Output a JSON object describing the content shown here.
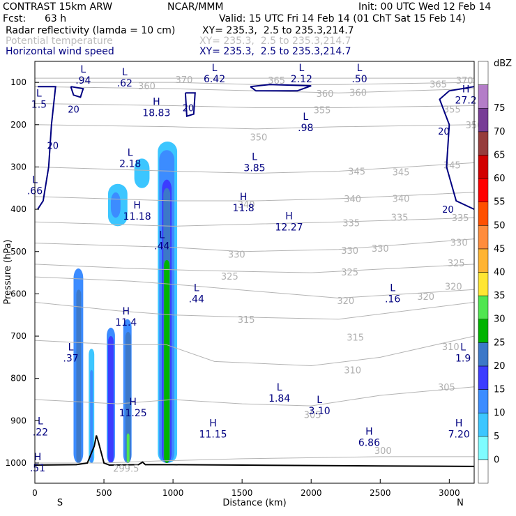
{
  "header": {
    "model": "CONTRAST 15km ARW",
    "org": "NCAR/MMM",
    "init": "Init: 00 UTC Wed 12 Feb 14",
    "fcst_label": "Fcst:",
    "fcst_value": "63 h",
    "valid": "Valid: 15 UTC Fri 14 Feb 14 (01 ChT Sat 15 Feb 14)",
    "fields": [
      {
        "name": "Radar reflectivity (lamda = 10 cm)",
        "xy": "XY= 235.3,  2.5 to 235.3,214.7"
      },
      {
        "name": "Potential temperature",
        "xy": "XY= 235.3,  2.5 to 235.3,214.7"
      },
      {
        "name": "Horizontal wind speed",
        "xy": "XY= 235.3,  2.5 to 235.3,214.7"
      }
    ]
  },
  "chart_data": {
    "type": "heatmap",
    "title": "",
    "xlabel": "Distance (km)",
    "ylabel": "Pressure (hPa)",
    "xlim": [
      0,
      3180
    ],
    "ylim": [
      1050,
      55
    ],
    "x_ticks": [
      0,
      500,
      1000,
      1500,
      2000,
      2500,
      3000
    ],
    "y_ticks": [
      100,
      200,
      300,
      400,
      500,
      600,
      700,
      800,
      900,
      1000
    ],
    "x_end_labels": {
      "left": "S",
      "right": "N"
    },
    "colorbar": {
      "unit": "dBZ",
      "levels": [
        0,
        5,
        10,
        15,
        20,
        25,
        30,
        35,
        40,
        45,
        50,
        55,
        60,
        65,
        70,
        75
      ],
      "colors": [
        "#ffffff",
        "#7ffcff",
        "#3cc6ff",
        "#3c8cff",
        "#3c3cff",
        "#3c78c8",
        "#00b400",
        "#50e650",
        "#ffe632",
        "#ffb432",
        "#ff8c3c",
        "#ff5000",
        "#ff0000",
        "#d20000",
        "#963c3c",
        "#783c96",
        "#b47dc8",
        "#ffffff"
      ]
    },
    "reflectivity_cells": [
      {
        "x0": 280,
        "x1": 350,
        "p_top": 540,
        "p_bot": 1000,
        "dbz": 10
      },
      {
        "x0": 300,
        "x1": 335,
        "p_top": 590,
        "p_bot": 1000,
        "dbz": 20
      },
      {
        "x0": 390,
        "x1": 430,
        "p_top": 730,
        "p_bot": 1000,
        "dbz": 5
      },
      {
        "x0": 400,
        "x1": 420,
        "p_top": 780,
        "p_bot": 1000,
        "dbz": 10
      },
      {
        "x0": 520,
        "x1": 580,
        "p_top": 680,
        "p_bot": 1000,
        "dbz": 10
      },
      {
        "x0": 530,
        "x1": 570,
        "p_top": 700,
        "p_bot": 1000,
        "dbz": 15
      },
      {
        "x0": 640,
        "x1": 700,
        "p_top": 660,
        "p_bot": 1000,
        "dbz": 10
      },
      {
        "x0": 655,
        "x1": 695,
        "p_top": 690,
        "p_bot": 1000,
        "dbz": 20
      },
      {
        "x0": 665,
        "x1": 685,
        "p_top": 930,
        "p_bot": 1000,
        "dbz": 30
      },
      {
        "x0": 890,
        "x1": 1030,
        "p_top": 240,
        "p_bot": 1000,
        "dbz": 5
      },
      {
        "x0": 900,
        "x1": 1010,
        "p_top": 260,
        "p_bot": 1000,
        "dbz": 10
      },
      {
        "x0": 920,
        "x1": 990,
        "p_top": 330,
        "p_bot": 1000,
        "dbz": 15
      },
      {
        "x0": 930,
        "x1": 980,
        "p_top": 350,
        "p_bot": 1000,
        "dbz": 20
      },
      {
        "x0": 935,
        "x1": 975,
        "p_top": 520,
        "p_bot": 1000,
        "dbz": 25
      },
      {
        "x0": 720,
        "x1": 830,
        "p_top": 280,
        "p_bot": 350,
        "dbz": 5
      },
      {
        "x0": 530,
        "x1": 670,
        "p_top": 340,
        "p_bot": 440,
        "dbz": 5
      },
      {
        "x0": 550,
        "x1": 620,
        "p_top": 360,
        "p_bot": 420,
        "dbz": 10
      }
    ],
    "theta_isolines": [
      {
        "value": 300,
        "points": [
          [
            0,
            1000
          ],
          [
            500,
            1000
          ],
          [
            900,
            995
          ],
          [
            1500,
            990
          ],
          [
            2500,
            985
          ],
          [
            3180,
            985
          ]
        ],
        "labels": [
          [
            2520,
            970
          ]
        ]
      },
      {
        "value": 305,
        "points": [
          [
            0,
            850
          ],
          [
            600,
            860
          ],
          [
            1000,
            850
          ],
          [
            1500,
            860
          ],
          [
            2000,
            865
          ],
          [
            2500,
            840
          ],
          [
            3180,
            820
          ]
        ],
        "labels": [
          [
            2010,
            885
          ],
          [
            2980,
            820
          ]
        ]
      },
      {
        "value": 310,
        "points": [
          [
            0,
            710
          ],
          [
            600,
            720
          ],
          [
            950,
            720
          ],
          [
            1300,
            760
          ],
          [
            2000,
            770
          ],
          [
            2500,
            750
          ],
          [
            3180,
            700
          ]
        ],
        "labels": [
          [
            2300,
            780
          ],
          [
            3010,
            725
          ]
        ]
      },
      {
        "value": 315,
        "points": [
          [
            0,
            620
          ],
          [
            600,
            640
          ],
          [
            1000,
            650
          ],
          [
            1500,
            655
          ],
          [
            2200,
            660
          ],
          [
            3180,
            620
          ]
        ],
        "labels": [
          [
            1530,
            660
          ],
          [
            2320,
            702
          ]
        ]
      },
      {
        "value": 320,
        "points": [
          [
            0,
            560
          ],
          [
            700,
            570
          ],
          [
            1100,
            580
          ],
          [
            2200,
            610
          ],
          [
            3180,
            590
          ]
        ],
        "labels": [
          [
            2250,
            616
          ],
          [
            2830,
            606
          ],
          [
            3030,
            582
          ]
        ]
      },
      {
        "value": 325,
        "points": [
          [
            0,
            530
          ],
          [
            700,
            540
          ],
          [
            1200,
            545
          ],
          [
            2000,
            550
          ],
          [
            3180,
            530
          ]
        ],
        "labels": [
          [
            1410,
            558
          ],
          [
            2280,
            548
          ],
          [
            3050,
            527
          ]
        ]
      },
      {
        "value": 330,
        "points": [
          [
            0,
            480
          ],
          [
            1000,
            490
          ],
          [
            1500,
            500
          ],
          [
            2200,
            495
          ],
          [
            3180,
            470
          ]
        ],
        "labels": [
          [
            1460,
            506
          ],
          [
            2280,
            497
          ],
          [
            2500,
            492
          ],
          [
            3070,
            478
          ]
        ]
      },
      {
        "value": 335,
        "points": [
          [
            0,
            430
          ],
          [
            1000,
            440
          ],
          [
            1600,
            435
          ],
          [
            2200,
            430
          ],
          [
            3180,
            420
          ]
        ],
        "labels": [
          [
            2290,
            432
          ],
          [
            2640,
            419
          ],
          [
            3080,
            420
          ]
        ]
      },
      {
        "value": 340,
        "points": [
          [
            0,
            370
          ],
          [
            1000,
            380
          ],
          [
            1600,
            380
          ],
          [
            2200,
            375
          ],
          [
            3180,
            360
          ]
        ],
        "labels": [
          [
            1530,
            388
          ],
          [
            2300,
            375
          ],
          [
            2650,
            374
          ]
        ]
      },
      {
        "value": 345,
        "points": [
          [
            0,
            300
          ],
          [
            1000,
            310
          ],
          [
            1600,
            315
          ],
          [
            2200,
            310
          ],
          [
            3180,
            290
          ]
        ],
        "labels": [
          [
            2330,
            310
          ],
          [
            2650,
            312
          ],
          [
            3020,
            295
          ]
        ]
      },
      {
        "value": 350,
        "points": [
          [
            0,
            200
          ],
          [
            1000,
            205
          ],
          [
            1600,
            210
          ],
          [
            2200,
            205
          ],
          [
            3180,
            200
          ]
        ],
        "labels": [
          [
            1620,
            229
          ],
          [
            3180,
            200
          ]
        ]
      },
      {
        "value": 355,
        "points": [
          [
            0,
            150
          ],
          [
            1000,
            155
          ],
          [
            1600,
            160
          ],
          [
            2200,
            160
          ],
          [
            3180,
            155
          ]
        ],
        "labels": [
          [
            2080,
            165
          ],
          [
            3020,
            163
          ]
        ]
      },
      {
        "value": 360,
        "points": [
          [
            0,
            110
          ],
          [
            1000,
            115
          ],
          [
            1600,
            120
          ],
          [
            2200,
            125
          ],
          [
            3180,
            115
          ]
        ],
        "labels": [
          [
            810,
            108
          ],
          [
            2100,
            126
          ],
          [
            2340,
            124
          ]
        ]
      },
      {
        "value": 365,
        "points": [
          [
            0,
            100
          ],
          [
            1000,
            100
          ],
          [
            1600,
            105
          ],
          [
            2200,
            105
          ],
          [
            3180,
            100
          ]
        ],
        "labels": [
          [
            1750,
            95
          ],
          [
            2920,
            104
          ]
        ]
      },
      {
        "value": 370,
        "points": [
          [
            0,
            90
          ],
          [
            1000,
            90
          ],
          [
            1600,
            90
          ],
          [
            3180,
            90
          ]
        ],
        "labels": [
          [
            1080,
            93
          ],
          [
            3110,
            95
          ]
        ]
      }
    ],
    "wind_speed_contours": [
      {
        "value": 20,
        "points": [
          [
            20,
            110
          ],
          [
            150,
            110
          ],
          [
            120,
            200
          ],
          [
            100,
            300
          ],
          [
            60,
            380
          ],
          [
            20,
            400
          ]
        ],
        "labels": [
          [
            130,
            249
          ],
          [
            280,
            163
          ]
        ]
      },
      {
        "value": 20,
        "points": [
          [
            260,
            110
          ],
          [
            350,
            115
          ],
          [
            330,
            135
          ],
          [
            280,
            130
          ],
          [
            260,
            110
          ]
        ],
        "labels": []
      },
      {
        "value": 20,
        "points": [
          [
            1090,
            125
          ],
          [
            1160,
            125
          ],
          [
            1150,
            175
          ],
          [
            1100,
            180
          ],
          [
            1090,
            125
          ]
        ],
        "labels": [
          [
            1110,
            160
          ]
        ]
      },
      {
        "value": 20,
        "points": [
          [
            1560,
            110
          ],
          [
            1700,
            105
          ],
          [
            2000,
            108
          ],
          [
            1900,
            120
          ],
          [
            1750,
            120
          ],
          [
            1600,
            120
          ],
          [
            1560,
            110
          ]
        ],
        "labels": []
      },
      {
        "value": 20,
        "points": [
          [
            3180,
            110
          ],
          [
            3000,
            120
          ],
          [
            2930,
            140
          ],
          [
            3000,
            200
          ],
          [
            2980,
            300
          ],
          [
            3050,
            380
          ],
          [
            3180,
            400
          ]
        ],
        "labels": [
          [
            2960,
            215
          ],
          [
            2990,
            400
          ]
        ]
      }
    ],
    "extrema": [
      {
        "kind": "L",
        "value": ".94",
        "x": 350,
        "p": 83
      },
      {
        "kind": "L",
        "value": ".62",
        "x": 650,
        "p": 90
      },
      {
        "kind": "L",
        "value": "6.42",
        "x": 1300,
        "p": 80
      },
      {
        "kind": "L",
        "value": "2.12",
        "x": 1930,
        "p": 80
      },
      {
        "kind": "L",
        "value": ".50",
        "x": 2350,
        "p": 80
      },
      {
        "kind": "L",
        "value": "1.5",
        "x": 30,
        "p": 140
      },
      {
        "kind": "H",
        "value": "18.83",
        "x": 880,
        "p": 160
      },
      {
        "kind": "H",
        "value": "27.2",
        "x": 3120,
        "p": 130
      },
      {
        "kind": "L",
        "value": ".98",
        "x": 1960,
        "p": 195
      },
      {
        "kind": "L",
        "value": "2.18",
        "x": 690,
        "p": 280
      },
      {
        "kind": "L",
        "value": "3.85",
        "x": 1590,
        "p": 290
      },
      {
        "kind": "L",
        "value": ".66",
        "x": 0,
        "p": 345
      },
      {
        "kind": "H",
        "value": "11.8",
        "x": 1510,
        "p": 385
      },
      {
        "kind": "H",
        "value": "11.18",
        "x": 740,
        "p": 405
      },
      {
        "kind": "H",
        "value": "12.27",
        "x": 1840,
        "p": 430
      },
      {
        "kind": "L",
        "value": ".44",
        "x": 920,
        "p": 475
      },
      {
        "kind": "L",
        "value": ".44",
        "x": 1170,
        "p": 600
      },
      {
        "kind": "L",
        "value": ".16",
        "x": 2590,
        "p": 600
      },
      {
        "kind": "H",
        "value": "11.4",
        "x": 660,
        "p": 655
      },
      {
        "kind": "L",
        "value": ".37",
        "x": 260,
        "p": 740
      },
      {
        "kind": "L",
        "value": "1.9",
        "x": 3100,
        "p": 740
      },
      {
        "kind": "L",
        "value": "1.84",
        "x": 1770,
        "p": 835
      },
      {
        "kind": "L",
        "value": "3.10",
        "x": 2060,
        "p": 865
      },
      {
        "kind": "H",
        "value": "11.25",
        "x": 710,
        "p": 870
      },
      {
        "kind": "H",
        "value": "11.15",
        "x": 1290,
        "p": 920
      },
      {
        "kind": "L",
        "value": ".22",
        "x": 40,
        "p": 915
      },
      {
        "kind": "H",
        "value": "6.86",
        "x": 2420,
        "p": 940
      },
      {
        "kind": "H",
        "value": "7.20",
        "x": 3070,
        "p": 920
      },
      {
        "kind": "H",
        "value": ".51",
        "x": 20,
        "p": 1000
      }
    ],
    "terrain": [
      [
        0,
        1005
      ],
      [
        300,
        1004
      ],
      [
        380,
        1000
      ],
      [
        430,
        960
      ],
      [
        445,
        935
      ],
      [
        460,
        950
      ],
      [
        500,
        1000
      ],
      [
        540,
        1005
      ],
      [
        750,
        1004
      ],
      [
        780,
        998
      ],
      [
        800,
        1004
      ],
      [
        1000,
        1004
      ],
      [
        1500,
        1005
      ],
      [
        2500,
        1007
      ],
      [
        3180,
        1008
      ]
    ],
    "terrain_label": {
      "value": "299.5",
      "x": 660,
      "p": 1012
    }
  }
}
